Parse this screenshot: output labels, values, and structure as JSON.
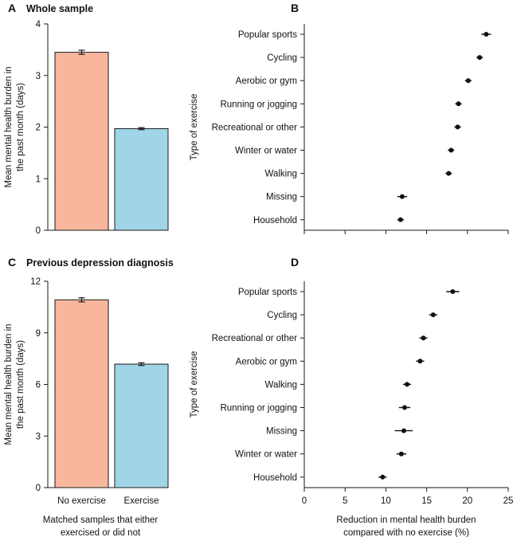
{
  "chart_data": [
    {
      "panel": "A",
      "type": "bar",
      "title": "Whole sample",
      "categories": [
        "No exercise",
        "Exercise"
      ],
      "values": [
        3.45,
        1.97
      ],
      "errors": [
        0.04,
        0.02
      ],
      "colors": [
        "#F8B79D",
        "#9FD5E6"
      ],
      "ylabel": "Mean mental health burden in the past month (days)",
      "ylim": [
        0,
        4
      ],
      "yticks": [
        0,
        1,
        2,
        3,
        4
      ],
      "show_xticklabels": false
    },
    {
      "panel": "B",
      "type": "scatter",
      "title": "",
      "categories": [
        "Popular sports",
        "Cycling",
        "Aerobic or gym",
        "Running or jogging",
        "Recreational or other",
        "Winter or water",
        "Walking",
        "Missing",
        "Household"
      ],
      "values": [
        22.3,
        21.5,
        20.1,
        18.9,
        18.8,
        18.0,
        17.7,
        12.0,
        11.8
      ],
      "ci_low": [
        21.7,
        21.1,
        19.7,
        18.5,
        18.4,
        17.6,
        17.3,
        11.4,
        11.4
      ],
      "ci_high": [
        22.9,
        21.9,
        20.5,
        19.3,
        19.2,
        18.4,
        18.1,
        12.6,
        12.2
      ],
      "ylabel": "Type of exercise",
      "xlim": [
        0,
        25
      ],
      "xticks": [
        0,
        5,
        10,
        15,
        20,
        25
      ],
      "show_xticklabels": false
    },
    {
      "panel": "C",
      "type": "bar",
      "title": "Previous depression diagnosis",
      "categories": [
        "No exercise",
        "Exercise"
      ],
      "values": [
        10.92,
        7.18
      ],
      "errors": [
        0.12,
        0.08
      ],
      "colors": [
        "#F8B79D",
        "#9FD5E6"
      ],
      "ylabel": "Mean mental health burden in the past month (days)",
      "xlabel": "Matched samples that either exercised or did not",
      "ylim": [
        0,
        12
      ],
      "yticks": [
        0,
        3,
        6,
        9,
        12
      ],
      "show_xticklabels": true
    },
    {
      "panel": "D",
      "type": "scatter",
      "title": "",
      "categories": [
        "Popular sports",
        "Cycling",
        "Recreational or other",
        "Aerobic or gym",
        "Walking",
        "Running or jogging",
        "Missing",
        "Winter or water",
        "Household"
      ],
      "values": [
        18.2,
        15.8,
        14.6,
        14.2,
        12.6,
        12.3,
        12.2,
        11.9,
        9.6
      ],
      "ci_low": [
        17.4,
        15.3,
        14.1,
        13.7,
        12.1,
        11.6,
        11.1,
        11.3,
        9.1
      ],
      "ci_high": [
        19.0,
        16.3,
        15.1,
        14.7,
        13.1,
        13.0,
        13.3,
        12.5,
        10.1
      ],
      "ylabel": "Type of exercise",
      "xlabel": "Reduction in mental health burden compared with no exercise (%)",
      "xlim": [
        0,
        25
      ],
      "xticks": [
        0,
        5,
        10,
        15,
        20,
        25
      ],
      "show_xticklabels": true
    }
  ]
}
